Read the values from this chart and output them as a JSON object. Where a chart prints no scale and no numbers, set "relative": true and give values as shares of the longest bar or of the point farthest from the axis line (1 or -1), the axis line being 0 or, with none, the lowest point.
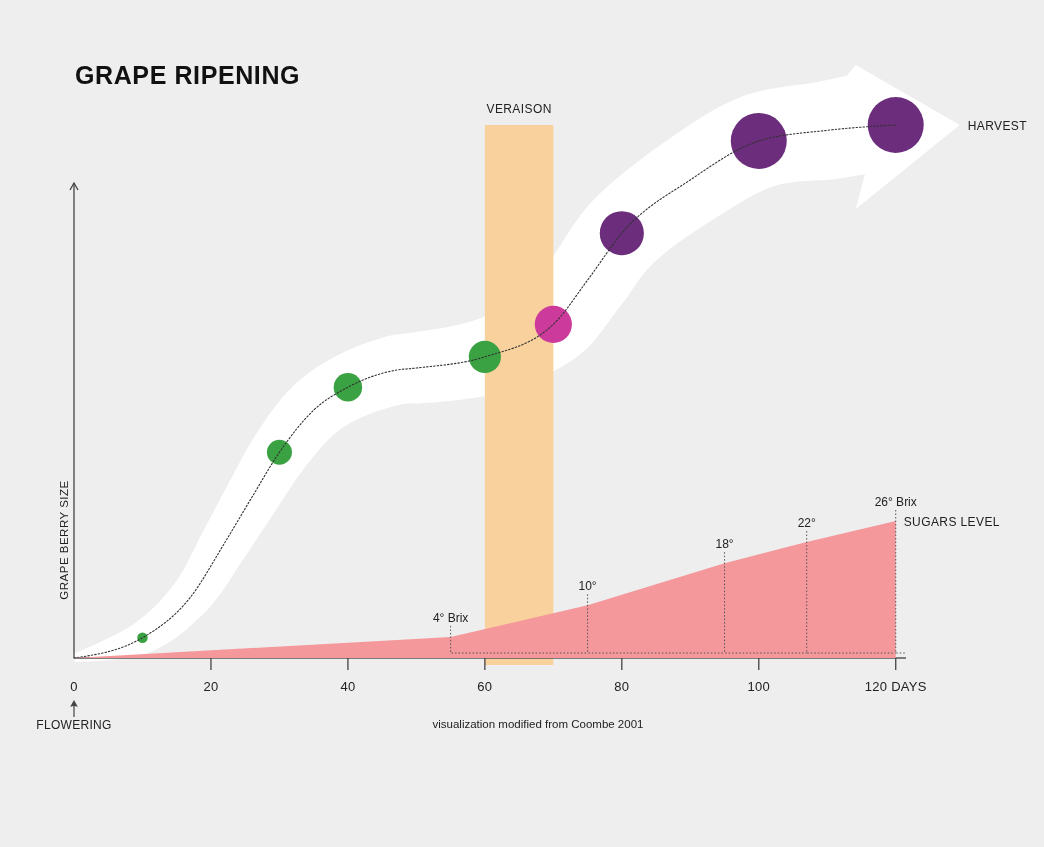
{
  "chart_data": [
    {
      "type": "line",
      "title": "GRAPE RIPENING",
      "ylabel": "GRAPE BERRY SIZE",
      "relative": true,
      "xlim": [
        0,
        121.5
      ],
      "xticks": [
        0,
        20,
        40,
        60,
        80,
        100,
        {
          "value": 120,
          "label": "120 DAYS"
        }
      ],
      "line_style": "dotted",
      "bands": [
        {
          "axis": "x",
          "from": 60,
          "to": 70,
          "label": "VERAISON",
          "color": "#f8d19c"
        }
      ],
      "annotations": [
        "HARVEST",
        "FLOWERING",
        "visualization modified from Coombe 2001"
      ],
      "series": [
        {
          "color": "#333333",
          "x": [
            0,
            10,
            17,
            22,
            26,
            30,
            35,
            40,
            47,
            50,
            60,
            70,
            75,
            80,
            90,
            100,
            110,
            120
          ],
          "values": [
            0,
            0.038,
            0.114,
            0.216,
            0.302,
            0.386,
            0.465,
            0.508,
            0.54,
            0.544,
            0.565,
            0.626,
            0.709,
            0.797,
            0.897,
            0.97,
            0.99,
            1.0
          ]
        },
        {
          "type": "bubble",
          "colors": [
            "#3aa242",
            "#3aa242",
            "#3aa242",
            "#3aa242",
            "#cc3a9c",
            "#6b2d7c",
            "#6b2d7c",
            "#6b2d7c"
          ],
          "x": [
            10,
            30,
            40,
            60,
            70,
            80,
            100,
            120
          ],
          "values": [
            0.038,
            0.386,
            0.508,
            0.565,
            0.626,
            0.797,
            0.97,
            1.0
          ],
          "sizes": [
            0.035,
            0.2,
            0.26,
            0.33,
            0.44,
            0.62,
            1,
            1
          ]
        }
      ]
    },
    {
      "type": "area",
      "xlim": [
        0,
        121.5
      ],
      "tick_labels": false,
      "series": [
        {
          "name": "SUGARS LEVEL",
          "color": "#f4989b",
          "x": [
            0,
            55,
            75,
            95,
            107,
            120
          ],
          "values": [
            0,
            4,
            10,
            18,
            22,
            26
          ],
          "value_labels": [
            null,
            "4° Brix",
            "10°",
            "18°",
            "22°",
            "26° Brix"
          ]
        }
      ]
    }
  ]
}
